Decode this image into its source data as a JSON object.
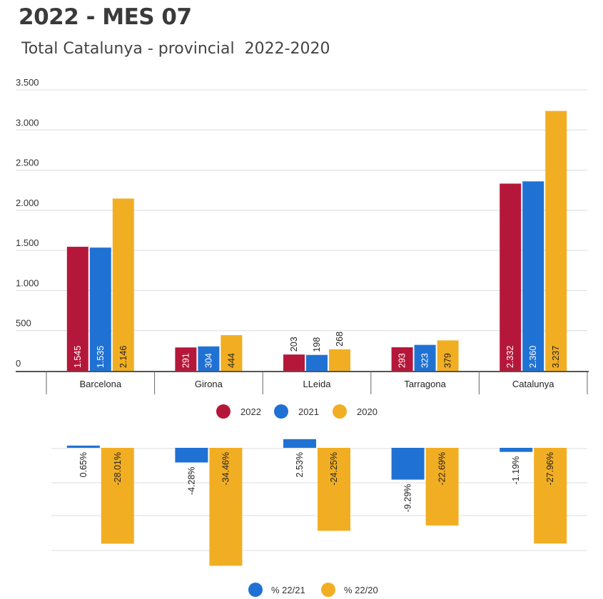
{
  "title": "2022 - MES 07",
  "subtitle": "Total Catalunya - provincial  2022-2020",
  "chart_data": [
    {
      "type": "bar",
      "categories": [
        "Barcelona",
        "Girona",
        "LLeida",
        "Tarragona",
        "Catalunya"
      ],
      "series": [
        {
          "name": "2022",
          "color": "#b5173a",
          "values": [
            1545,
            291,
            203,
            293,
            2332
          ],
          "labels": [
            "1.545",
            "291",
            "203",
            "293",
            "2.332"
          ]
        },
        {
          "name": "2021",
          "color": "#1f72d3",
          "values": [
            1535,
            304,
            198,
            323,
            2360
          ],
          "labels": [
            "1.535",
            "304",
            "198",
            "323",
            "2.360"
          ]
        },
        {
          "name": "2020",
          "color": "#f2ae22",
          "values": [
            2146,
            444,
            268,
            379,
            3237
          ],
          "labels": [
            "2.146",
            "444",
            "268",
            "379",
            "3.237"
          ]
        }
      ],
      "ylim": [
        0,
        3500
      ],
      "yticks": [
        0,
        500,
        1000,
        1500,
        2000,
        2500,
        3000,
        3500
      ],
      "yticklabels": [
        "0",
        "500",
        "1.000",
        "1.500",
        "2.000",
        "2.500",
        "3.000",
        "3.500"
      ],
      "grid": true,
      "legend": "bottom"
    },
    {
      "type": "bar",
      "categories": [
        "Barcelona",
        "Girona",
        "LLeida",
        "Tarragona",
        "Catalunya"
      ],
      "series": [
        {
          "name": "% 22/21",
          "color": "#1f72d3",
          "values": [
            0.65,
            -4.28,
            2.53,
            -9.29,
            -1.19
          ],
          "labels": [
            "0.65%",
            "-4.28%",
            "2.53%",
            "-9.29%",
            "-1.19%"
          ]
        },
        {
          "name": "% 22/20",
          "color": "#f2ae22",
          "values": [
            -28.01,
            -34.46,
            -24.25,
            -22.69,
            -27.96
          ],
          "labels": [
            "-28.01%",
            "-34.46%",
            "-24.25%",
            "-22.69%",
            "-27.96%"
          ]
        }
      ],
      "grid": true,
      "legend": "bottom"
    }
  ]
}
